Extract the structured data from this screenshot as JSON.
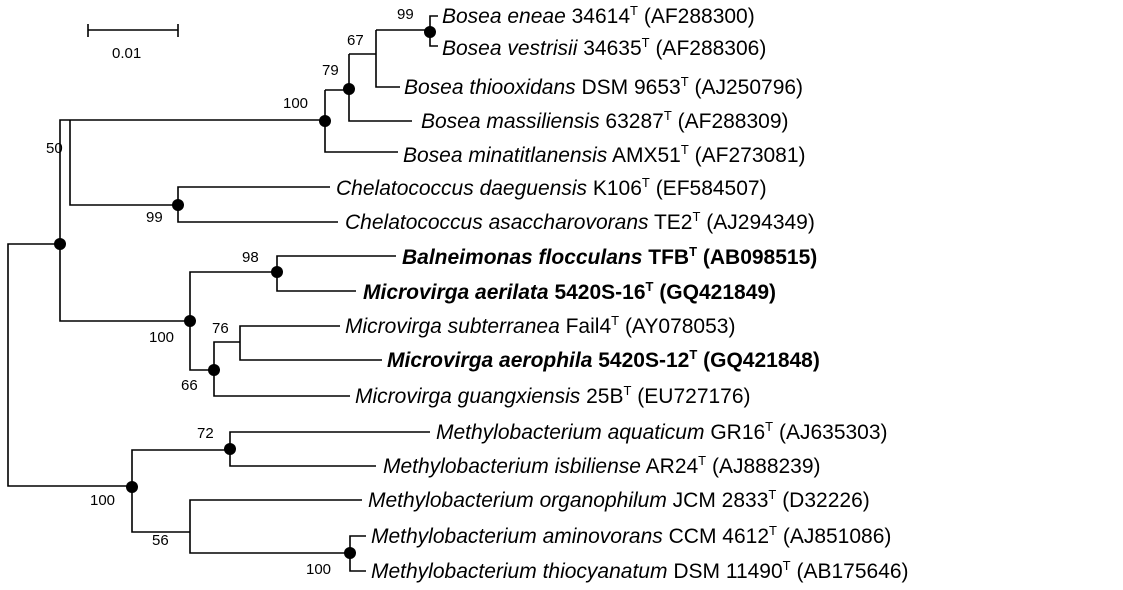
{
  "scale_bar": {
    "label": "0.01"
  },
  "leaves": [
    {
      "species": "Bosea eneae",
      "strain": "34614",
      "accession": "(AF288300)",
      "bold": false
    },
    {
      "species": "Bosea vestrisii",
      "strain": "34635",
      "accession": "(AF288306)",
      "bold": false
    },
    {
      "species": "Bosea thiooxidans",
      "strain": "DSM 9653",
      "accession": "(AJ250796)",
      "bold": false
    },
    {
      "species": "Bosea massiliensis",
      "strain": "63287",
      "accession": "(AF288309)",
      "bold": false
    },
    {
      "species": "Bosea minatitlanensis",
      "strain": "AMX51",
      "accession": "(AF273081)",
      "bold": false
    },
    {
      "species": "Chelatococcus daeguensis",
      "strain": "K106",
      "accession": "(EF584507)",
      "bold": false
    },
    {
      "species": "Chelatococcus asaccharovorans",
      "strain": "TE2",
      "accession": "(AJ294349)",
      "bold": false
    },
    {
      "species": "Balneimonas flocculans",
      "strain": "TFB",
      "accession": "(AB098515)",
      "bold": true
    },
    {
      "species": "Microvirga aerilata",
      "strain": "5420S-16",
      "accession": "(GQ421849)",
      "bold": true
    },
    {
      "species": "Microvirga subterranea",
      "strain": "Fail4",
      "accession": "(AY078053)",
      "bold": false
    },
    {
      "species": "Microvirga aerophila",
      "strain": "5420S-12",
      "accession": "(GQ421848)",
      "bold": true
    },
    {
      "species": "Microvirga guangxiensis",
      "strain": "25B",
      "accession": "(EU727176)",
      "bold": false
    },
    {
      "species": "Methylobacterium aquaticum",
      "strain": "GR16",
      "accession": "(AJ635303)",
      "bold": false
    },
    {
      "species": "Methylobacterium isbiliense",
      "strain": "AR24",
      "accession": "(AJ888239)",
      "bold": false
    },
    {
      "species": "Methylobacterium organophilum",
      "strain": "JCM 2833",
      "accession": "(D32226)",
      "bold": false
    },
    {
      "species": "Methylobacterium aminovorans",
      "strain": "CCM 4612",
      "accession": "(AJ851086)",
      "bold": false
    },
    {
      "species": "Methylobacterium thiocyanatum",
      "strain": "DSM 11490",
      "accession": "(AB175646)",
      "bold": false
    }
  ],
  "type_strain_mark": "T",
  "bootstrap": [
    "99",
    "67",
    "79",
    "100",
    "50",
    "99",
    "98",
    "100",
    "76",
    "66",
    "72",
    "100",
    "56",
    "100"
  ]
}
